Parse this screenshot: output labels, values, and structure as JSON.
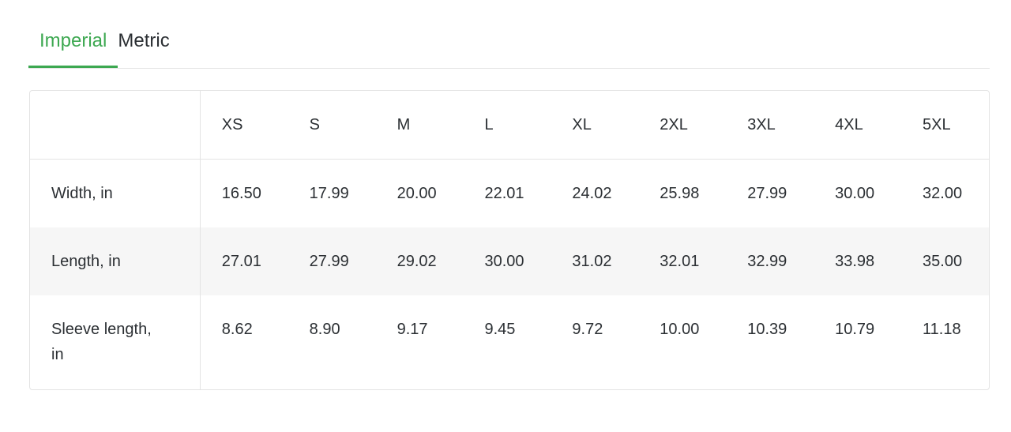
{
  "tabs": [
    {
      "label": "Imperial",
      "active": true
    },
    {
      "label": "Metric",
      "active": false
    }
  ],
  "accent_color": "#3da851",
  "table": {
    "sizes": [
      "XS",
      "S",
      "M",
      "L",
      "XL",
      "2XL",
      "3XL",
      "4XL",
      "5XL"
    ],
    "rows": [
      {
        "label": "Width, in",
        "values": [
          "16.50",
          "17.99",
          "20.00",
          "22.01",
          "24.02",
          "25.98",
          "27.99",
          "30.00",
          "32.00"
        ]
      },
      {
        "label": "Length, in",
        "values": [
          "27.01",
          "27.99",
          "29.02",
          "30.00",
          "31.02",
          "32.01",
          "32.99",
          "33.98",
          "35.00"
        ]
      },
      {
        "label": "Sleeve length, in",
        "values": [
          "8.62",
          "8.90",
          "9.17",
          "9.45",
          "9.72",
          "10.00",
          "10.39",
          "10.79",
          "11.18"
        ]
      }
    ]
  }
}
